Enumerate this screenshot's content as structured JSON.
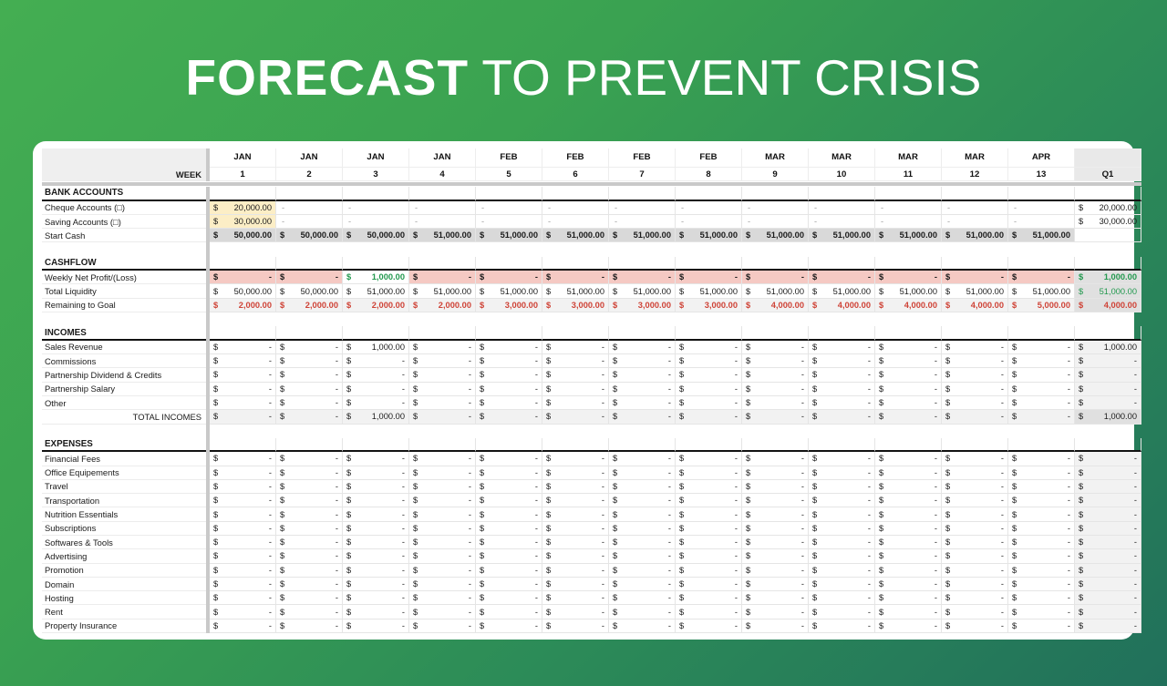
{
  "title": {
    "emphasis": "FORECAST",
    "rest": "TO PREVENT CRISIS"
  },
  "colors": {
    "background_gradient_start": "#44ae52",
    "background_gradient_end": "#21705b",
    "panel_white": "#ffffff",
    "input_highlight_yellow": "#fceec6",
    "alert_pink": "#f5c9c3",
    "start_cash_gray": "#d9d9d9",
    "subtotal_light_gray": "#f2f2f2",
    "summary_gray": "#e0e0e0",
    "positive_green": "#23994f",
    "negative_red": "#cf4337"
  },
  "sheet": {
    "week_label": "WEEK",
    "summary_label": "Q1",
    "columns": [
      {
        "month": "JAN",
        "week": "1"
      },
      {
        "month": "JAN",
        "week": "2"
      },
      {
        "month": "JAN",
        "week": "3"
      },
      {
        "month": "JAN",
        "week": "4"
      },
      {
        "month": "FEB",
        "week": "5"
      },
      {
        "month": "FEB",
        "week": "6"
      },
      {
        "month": "FEB",
        "week": "7"
      },
      {
        "month": "FEB",
        "week": "8"
      },
      {
        "month": "MAR",
        "week": "9"
      },
      {
        "month": "MAR",
        "week": "10"
      },
      {
        "month": "MAR",
        "week": "11"
      },
      {
        "month": "MAR",
        "week": "12"
      },
      {
        "month": "APR",
        "week": "13"
      }
    ],
    "sections": [
      {
        "name": "BANK ACCOUNTS",
        "rows": [
          {
            "label": "Cheque Accounts (□)",
            "row_style": "",
            "cells": [
              "$ 20,000.00|bg-yellow",
              "-",
              "-",
              "-",
              "-",
              "-",
              "-",
              "-",
              "-",
              "-",
              "-",
              "-",
              "-",
              "$ 20,000.00"
            ]
          },
          {
            "label": "Saving Accounts (□)",
            "row_style": "",
            "cells": [
              "$ 30,000.00|bg-yellow",
              "-",
              "-",
              "-",
              "-",
              "-",
              "-",
              "-",
              "-",
              "-",
              "-",
              "-",
              "-",
              "$ 30,000.00"
            ]
          },
          {
            "label": "Start Cash",
            "row_style": "bg-gray bold",
            "cells": [
              "$ 50,000.00",
              "$ 50,000.00",
              "$ 50,000.00",
              "$ 51,000.00",
              "$ 51,000.00",
              "$ 51,000.00",
              "$ 51,000.00",
              "$ 51,000.00",
              "$ 51,000.00",
              "$ 51,000.00",
              "$ 51,000.00",
              "$ 51,000.00",
              "$ 51,000.00",
              ""
            ]
          }
        ]
      },
      {
        "name": "CASHFLOW",
        "rows": [
          {
            "label": "Weekly Net Profit/(Loss)",
            "row_style": "bold",
            "cells": [
              "$ -|bg-pink bold",
              "$ -|bg-pink bold",
              "$ 1,000.00|txt-green bold",
              "$ -|bg-pink bold",
              "$ -|bg-pink bold",
              "$ -|bg-pink bold",
              "$ -|bg-pink bold",
              "$ -|bg-pink bold",
              "$ -|bg-pink bold",
              "$ -|bg-pink bold",
              "$ -|bg-pink bold",
              "$ -|bg-pink bold",
              "$ -|bg-pink bold",
              "$ 1,000.00|txt-green bold bg-mgray"
            ]
          },
          {
            "label": "Total Liquidity",
            "row_style": "",
            "cells": [
              "$ 50,000.00",
              "$ 50,000.00",
              "$ 51,000.00",
              "$ 51,000.00",
              "$ 51,000.00",
              "$ 51,000.00",
              "$ 51,000.00",
              "$ 51,000.00",
              "$ 51,000.00",
              "$ 51,000.00",
              "$ 51,000.00",
              "$ 51,000.00",
              "$ 51,000.00",
              "$ 51,000.00|txt-green bg-mgray"
            ]
          },
          {
            "label": "Remaining to Goal",
            "row_style": "txt-red bold bg-lgray",
            "cells": [
              "$ 2,000.00",
              "$ 2,000.00",
              "$ 2,000.00",
              "$ 2,000.00",
              "$ 3,000.00",
              "$ 3,000.00",
              "$ 3,000.00",
              "$ 3,000.00",
              "$ 4,000.00",
              "$ 4,000.00",
              "$ 4,000.00",
              "$ 4,000.00",
              "$ 5,000.00",
              "$ 4,000.00|txt-red bold bg-mgray"
            ]
          }
        ]
      },
      {
        "name": "INCOMES",
        "rows": [
          {
            "label": "Sales Revenue",
            "row_style": "",
            "cells": [
              "$ -",
              "$ -",
              "$ 1,000.00",
              "$ -",
              "$ -",
              "$ -",
              "$ -",
              "$ -",
              "$ -",
              "$ -",
              "$ -",
              "$ -",
              "$ -",
              "$ 1,000.00|bg-lgray"
            ]
          },
          {
            "label": "Commissions",
            "row_style": "",
            "cells": [
              "$ -",
              "$ -",
              "$ -",
              "$ -",
              "$ -",
              "$ -",
              "$ -",
              "$ -",
              "$ -",
              "$ -",
              "$ -",
              "$ -",
              "$ -",
              "$ -|bg-lgray"
            ]
          },
          {
            "label": "Partnership Dividend & Credits",
            "row_style": "",
            "cells": [
              "$ -",
              "$ -",
              "$ -",
              "$ -",
              "$ -",
              "$ -",
              "$ -",
              "$ -",
              "$ -",
              "$ -",
              "$ -",
              "$ -",
              "$ -",
              "$ -|bg-lgray"
            ]
          },
          {
            "label": "Partnership Salary",
            "row_style": "",
            "cells": [
              "$ -",
              "$ -",
              "$ -",
              "$ -",
              "$ -",
              "$ -",
              "$ -",
              "$ -",
              "$ -",
              "$ -",
              "$ -",
              "$ -",
              "$ -",
              "$ -|bg-lgray"
            ]
          },
          {
            "label": "Other",
            "row_style": "",
            "cells": [
              "$ -",
              "$ -",
              "$ -",
              "$ -",
              "$ -",
              "$ -",
              "$ -",
              "$ -",
              "$ -",
              "$ -",
              "$ -",
              "$ -",
              "$ -",
              "$ -|bg-lgray"
            ]
          },
          {
            "label": "TOTAL INCOMES",
            "label_align": "right",
            "row_style": "bg-lgray",
            "cells": [
              "$ -",
              "$ -",
              "$ 1,000.00",
              "$ -",
              "$ -",
              "$ -",
              "$ -",
              "$ -",
              "$ -",
              "$ -",
              "$ -",
              "$ -",
              "$ -",
              "$ 1,000.00|bg-mgray"
            ]
          }
        ]
      },
      {
        "name": "EXPENSES",
        "rows": [
          {
            "label": "Financial Fees",
            "row_style": "",
            "cells": [
              "$ -",
              "$ -",
              "$ -",
              "$ -",
              "$ -",
              "$ -",
              "$ -",
              "$ -",
              "$ -",
              "$ -",
              "$ -",
              "$ -",
              "$ -",
              "$ -|bg-lgray"
            ]
          },
          {
            "label": "Office Equipements",
            "row_style": "",
            "cells": [
              "$ -",
              "$ -",
              "$ -",
              "$ -",
              "$ -",
              "$ -",
              "$ -",
              "$ -",
              "$ -",
              "$ -",
              "$ -",
              "$ -",
              "$ -",
              "$ -|bg-lgray"
            ]
          },
          {
            "label": "Travel",
            "row_style": "",
            "cells": [
              "$ -",
              "$ -",
              "$ -",
              "$ -",
              "$ -",
              "$ -",
              "$ -",
              "$ -",
              "$ -",
              "$ -",
              "$ -",
              "$ -",
              "$ -",
              "$ -|bg-lgray"
            ]
          },
          {
            "label": "Transportation",
            "row_style": "",
            "cells": [
              "$ -",
              "$ -",
              "$ -",
              "$ -",
              "$ -",
              "$ -",
              "$ -",
              "$ -",
              "$ -",
              "$ -",
              "$ -",
              "$ -",
              "$ -",
              "$ -|bg-lgray"
            ]
          },
          {
            "label": "Nutrition Essentials",
            "row_style": "",
            "cells": [
              "$ -",
              "$ -",
              "$ -",
              "$ -",
              "$ -",
              "$ -",
              "$ -",
              "$ -",
              "$ -",
              "$ -",
              "$ -",
              "$ -",
              "$ -",
              "$ -|bg-lgray"
            ]
          },
          {
            "label": "Subscriptions",
            "row_style": "",
            "cells": [
              "$ -",
              "$ -",
              "$ -",
              "$ -",
              "$ -",
              "$ -",
              "$ -",
              "$ -",
              "$ -",
              "$ -",
              "$ -",
              "$ -",
              "$ -",
              "$ -|bg-lgray"
            ]
          },
          {
            "label": "Softwares & Tools",
            "row_style": "",
            "cells": [
              "$ -",
              "$ -",
              "$ -",
              "$ -",
              "$ -",
              "$ -",
              "$ -",
              "$ -",
              "$ -",
              "$ -",
              "$ -",
              "$ -",
              "$ -",
              "$ -|bg-lgray"
            ]
          },
          {
            "label": "Advertising",
            "row_style": "",
            "cells": [
              "$ -",
              "$ -",
              "$ -",
              "$ -",
              "$ -",
              "$ -",
              "$ -",
              "$ -",
              "$ -",
              "$ -",
              "$ -",
              "$ -",
              "$ -",
              "$ -|bg-lgray"
            ]
          },
          {
            "label": "Promotion",
            "row_style": "",
            "cells": [
              "$ -",
              "$ -",
              "$ -",
              "$ -",
              "$ -",
              "$ -",
              "$ -",
              "$ -",
              "$ -",
              "$ -",
              "$ -",
              "$ -",
              "$ -",
              "$ -|bg-lgray"
            ]
          },
          {
            "label": "Domain",
            "row_style": "",
            "cells": [
              "$ -",
              "$ -",
              "$ -",
              "$ -",
              "$ -",
              "$ -",
              "$ -",
              "$ -",
              "$ -",
              "$ -",
              "$ -",
              "$ -",
              "$ -",
              "$ -|bg-lgray"
            ]
          },
          {
            "label": "Hosting",
            "row_style": "",
            "cells": [
              "$ -",
              "$ -",
              "$ -",
              "$ -",
              "$ -",
              "$ -",
              "$ -",
              "$ -",
              "$ -",
              "$ -",
              "$ -",
              "$ -",
              "$ -",
              "$ -|bg-lgray"
            ]
          },
          {
            "label": "Rent",
            "row_style": "",
            "cells": [
              "$ -",
              "$ -",
              "$ -",
              "$ -",
              "$ -",
              "$ -",
              "$ -",
              "$ -",
              "$ -",
              "$ -",
              "$ -",
              "$ -",
              "$ -",
              "$ -|bg-lgray"
            ]
          },
          {
            "label": "Property Insurance",
            "row_style": "",
            "cells": [
              "$ -",
              "$ -",
              "$ -",
              "$ -",
              "$ -",
              "$ -",
              "$ -",
              "$ -",
              "$ -",
              "$ -",
              "$ -",
              "$ -",
              "$ -",
              "$ -|bg-lgray"
            ]
          }
        ]
      }
    ]
  }
}
